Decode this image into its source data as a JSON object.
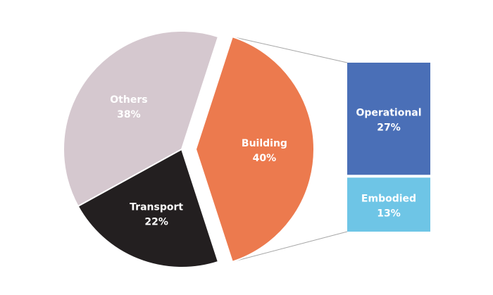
{
  "chart_data": {
    "type": "pie",
    "title": "",
    "slices": [
      {
        "label": "Others",
        "value": 38,
        "value_label": "38%",
        "color": "#d5c8cf"
      },
      {
        "label": "Building",
        "value": 40,
        "value_label": "40%",
        "color": "#ec7a4e"
      },
      {
        "label": "Transport",
        "value": 22,
        "value_label": "22%",
        "color": "#231f20"
      }
    ],
    "breakdown": {
      "of": "Building",
      "items": [
        {
          "label": "Operational",
          "value": 27,
          "value_label": "27%",
          "color": "#4a6fb7"
        },
        {
          "label": "Embodied",
          "value": 13,
          "value_label": "13%",
          "color": "#6ec5e6"
        }
      ]
    }
  }
}
